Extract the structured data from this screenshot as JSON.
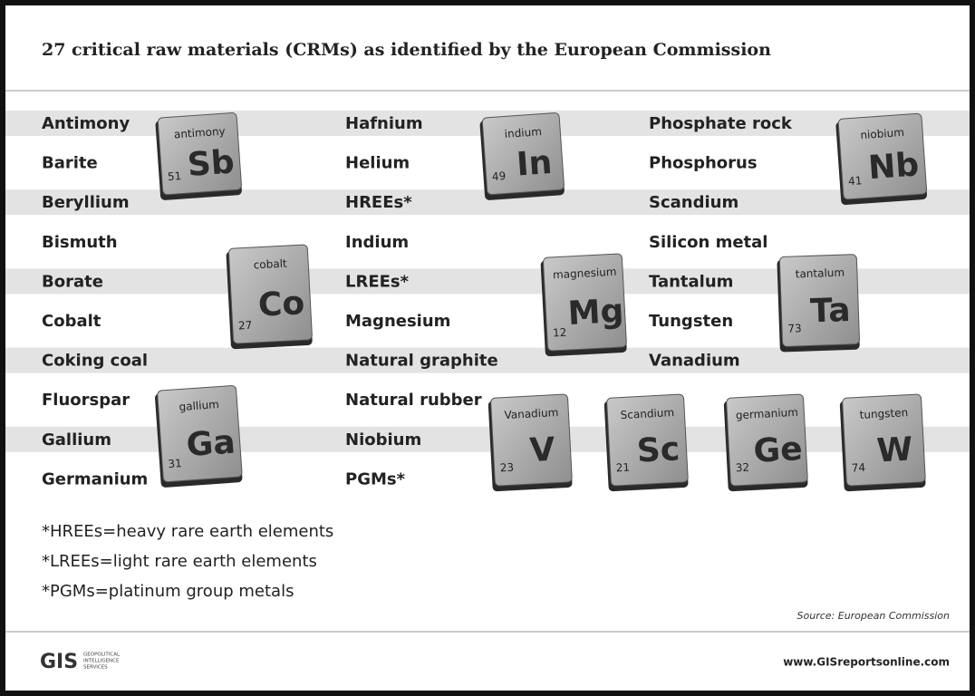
{
  "header": {
    "title": "27 critical raw materials (CRMs) as identified by the European Commission"
  },
  "columns": [
    [
      "Antimony",
      "Barite",
      "Beryllium",
      "Bismuth",
      "Borate",
      "Cobalt",
      "Coking coal",
      "Fluorspar",
      "Gallium",
      "Germanium"
    ],
    [
      "Hafnium",
      "Helium",
      "HREEs*",
      "Indium",
      "LREEs*",
      "Magnesium",
      "Natural graphite",
      "Natural rubber",
      "Niobium",
      "PGMs*"
    ],
    [
      "Phosphate rock",
      "Phosphorus",
      "Scandium",
      "Silicon metal",
      "Tantalum",
      "Tungsten",
      "Vanadium"
    ]
  ],
  "tiles": [
    {
      "name": "antimony",
      "number": 51,
      "symbol": "Sb"
    },
    {
      "name": "indium",
      "number": 49,
      "symbol": "In"
    },
    {
      "name": "niobium",
      "number": 41,
      "symbol": "Nb"
    },
    {
      "name": "cobalt",
      "number": 27,
      "symbol": "Co"
    },
    {
      "name": "magnesium",
      "number": 12,
      "symbol": "Mg"
    },
    {
      "name": "tantalum",
      "number": 73,
      "symbol": "Ta"
    },
    {
      "name": "gallium",
      "number": 31,
      "symbol": "Ga"
    },
    {
      "name": "Vanadium",
      "number": 23,
      "symbol": "V"
    },
    {
      "name": "Scandium",
      "number": 21,
      "symbol": "Sc"
    },
    {
      "name": "germanium",
      "number": 32,
      "symbol": "Ge"
    },
    {
      "name": "tungsten",
      "number": 74,
      "symbol": "W"
    }
  ],
  "footnotes": [
    "*HREEs=heavy rare earth elements",
    "*LREEs=light rare earth elements",
    "*PGMs=platinum group metals"
  ],
  "source": "Source: European Commission",
  "footer": {
    "logo": "GIS",
    "tagline": [
      "GEOPOLITICAL",
      "INTELLIGENCE",
      "SERVICES"
    ],
    "website": "www.GISreportsonline.com"
  }
}
